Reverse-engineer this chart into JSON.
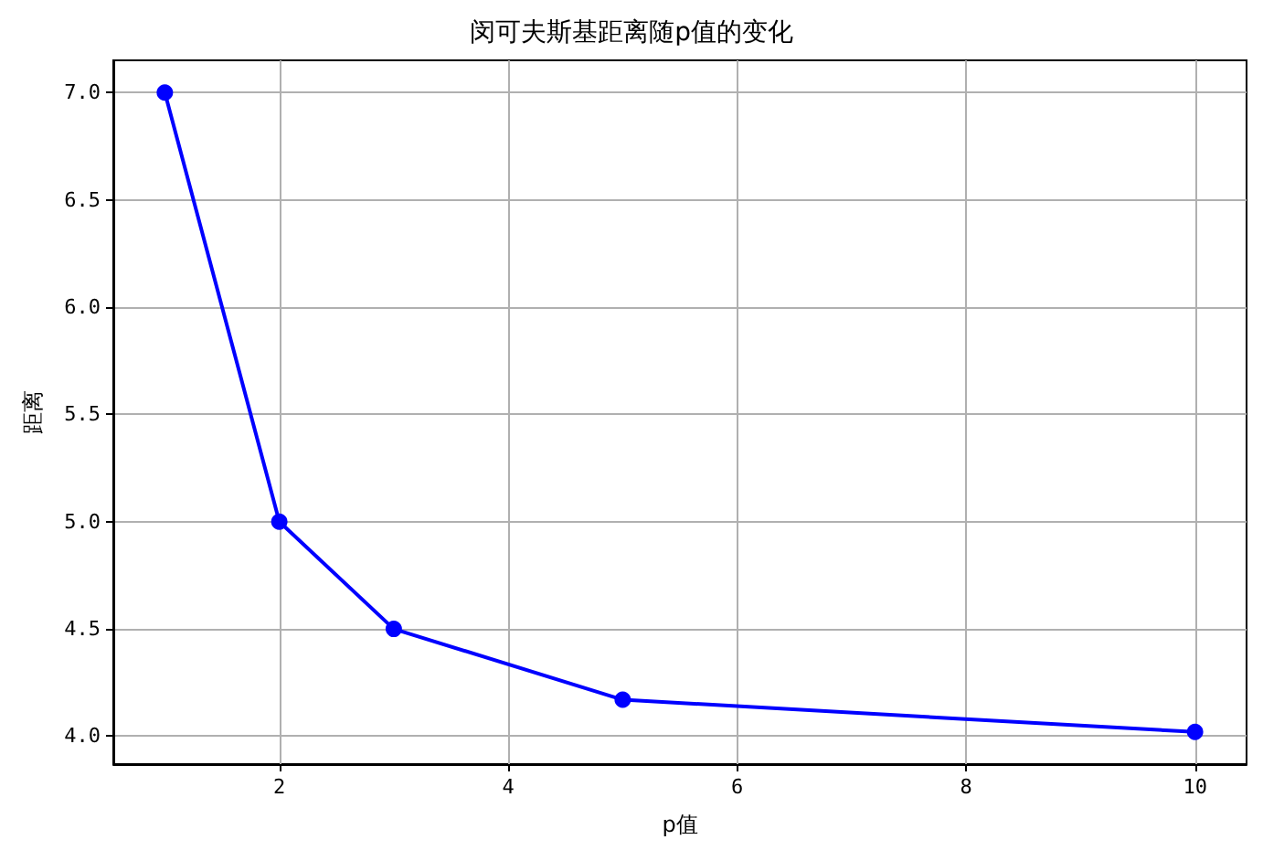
{
  "chart_data": {
    "type": "line",
    "title": "闵可夫斯基距离随p值的变化",
    "xlabel": "p值",
    "ylabel": "距离",
    "x": [
      1,
      2,
      3,
      5,
      10
    ],
    "series": [
      {
        "color": "#0000ff",
        "values": [
          7.0,
          5.0,
          4.5,
          4.17,
          4.02
        ]
      }
    ],
    "xlim": [
      0.55,
      10.45
    ],
    "xticks": [
      2,
      4,
      6,
      8,
      10
    ],
    "ylim": [
      3.87,
      7.15
    ],
    "yticks": [
      {
        "value": 4,
        "label": "4.0"
      },
      4.5,
      {
        "value": 5,
        "label": "5.0"
      },
      5.5,
      {
        "value": 6,
        "label": "6.0"
      },
      6.5,
      {
        "value": 7,
        "label": "7.0"
      }
    ],
    "grid": true,
    "marker": "circle",
    "line_style": "solid"
  }
}
